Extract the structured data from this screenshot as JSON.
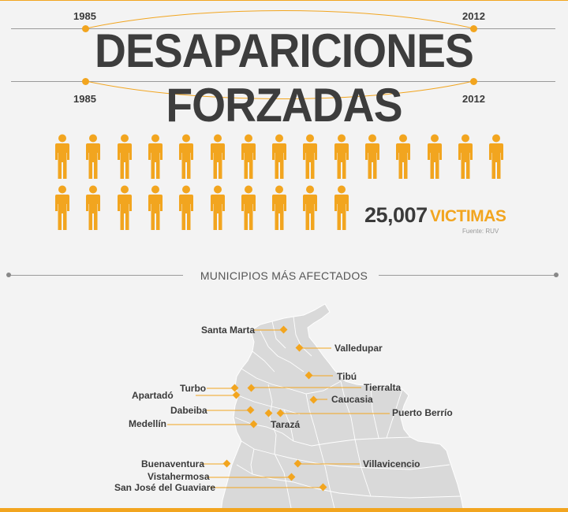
{
  "header": {
    "year_start_top": "1985",
    "year_end_top": "2012",
    "title": "DESAPARICIONES FORZADAS",
    "year_start_bottom": "1985",
    "year_end_bottom": "2012"
  },
  "stats": {
    "count": "25,007",
    "label": "VICTIMAS",
    "source": "Fuente: RUV",
    "icon": "person-icon",
    "icon_rows": [
      15,
      10
    ]
  },
  "section": {
    "title": "MUNICIPIOS MÁS AFECTADOS"
  },
  "municipalities": [
    "Santa Marta",
    "Valledupar",
    "Tibú",
    "Turbo",
    "Tierralta",
    "Apartadó",
    "Caucasia",
    "Dabeiba",
    "Puerto Berrío",
    "Medellín",
    "Tarazá",
    "Buenaventura",
    "Villavicencio",
    "Vistahermosa",
    "San José del Guaviare"
  ],
  "colors": {
    "accent": "#f2a51f",
    "text": "#3a3a3a",
    "map_fill": "#d9d9d9",
    "background": "#f3f3f3"
  }
}
